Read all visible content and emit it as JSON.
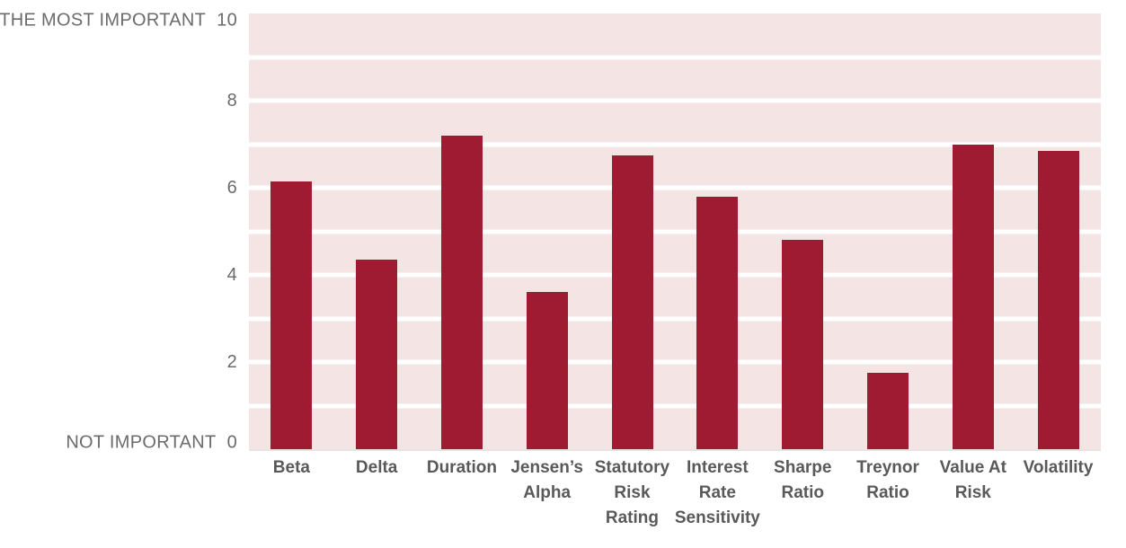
{
  "chart_data": {
    "type": "bar",
    "title": "",
    "categories": [
      "Beta",
      "Delta",
      "Duration",
      "Jensen’s Alpha",
      "Statutory Risk Rating",
      "Interest Rate Sensitivity",
      "Sharpe Ratio",
      "Treynor Ratio",
      "Value At Risk",
      "Volatility"
    ],
    "category_lines": [
      [
        "Beta"
      ],
      [
        "Delta"
      ],
      [
        "Duration"
      ],
      [
        "Jensen’s",
        "Alpha"
      ],
      [
        "Statutory",
        "Risk",
        "Rating"
      ],
      [
        "Interest",
        "Rate",
        "Sensitivity"
      ],
      [
        "Sharpe",
        "Ratio"
      ],
      [
        "Treynor",
        "Ratio"
      ],
      [
        "Value At",
        "Risk"
      ],
      [
        "Volatility"
      ]
    ],
    "values": [
      6.15,
      4.35,
      7.2,
      3.6,
      6.75,
      5.8,
      4.8,
      1.75,
      7.0,
      6.85
    ],
    "xlabel": "",
    "ylabel": "",
    "ylim": [
      0,
      10
    ],
    "gridline_interval": 1,
    "legend_position": "none",
    "yaxis_ticks": [
      {
        "value": 10,
        "prefix": "THE MOST IMPORTANT",
        "label": "10"
      },
      {
        "value": 8,
        "prefix": "",
        "label": "8"
      },
      {
        "value": 6,
        "prefix": "",
        "label": "6"
      },
      {
        "value": 4,
        "prefix": "",
        "label": "4"
      },
      {
        "value": 2,
        "prefix": "",
        "label": "2"
      },
      {
        "value": 0,
        "prefix": "NOT IMPORTANT",
        "label": "0"
      }
    ],
    "colors": {
      "bar": "#9e1b32",
      "plot_background": "#f5e4e4",
      "gridline": "#ffffff",
      "baseline": "#e9e2e2",
      "tick_label": "#6b6b6b",
      "category_label": "#595959",
      "page_background": "#ffffff"
    }
  }
}
